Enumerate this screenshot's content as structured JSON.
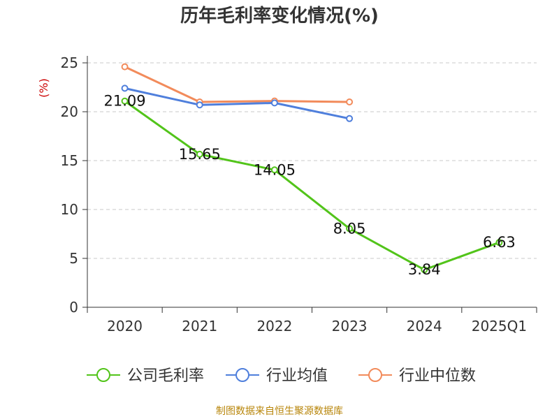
{
  "title": "历年毛利率变化情况(%)",
  "footer": "制图数据来自恒生聚源数据库",
  "chart_data": {
    "type": "line",
    "title": "历年毛利率变化情况(%)",
    "ylabel": "(%)",
    "xlabel": "",
    "categories": [
      "2020",
      "2021",
      "2022",
      "2023",
      "2024",
      "2025Q1"
    ],
    "ylim": [
      0,
      25
    ],
    "yticks": [
      0,
      5,
      10,
      15,
      20,
      25
    ],
    "grid": true,
    "legend_position": "bottom",
    "series": [
      {
        "name": "公司毛利率",
        "color": "#52c41a",
        "labeled": true,
        "values": [
          21.09,
          15.65,
          14.05,
          8.05,
          3.84,
          6.63
        ],
        "labels": [
          "21.09",
          "15.65",
          "14.05",
          "8.05",
          "3.84",
          "6.63"
        ]
      },
      {
        "name": "行业均值",
        "color": "#4f7fdc",
        "labeled": false,
        "values": [
          22.4,
          20.7,
          20.9,
          19.3,
          null,
          null
        ]
      },
      {
        "name": "行业中位数",
        "color": "#f28b5b",
        "labeled": false,
        "values": [
          24.6,
          21.0,
          21.1,
          21.0,
          null,
          null
        ]
      }
    ]
  }
}
